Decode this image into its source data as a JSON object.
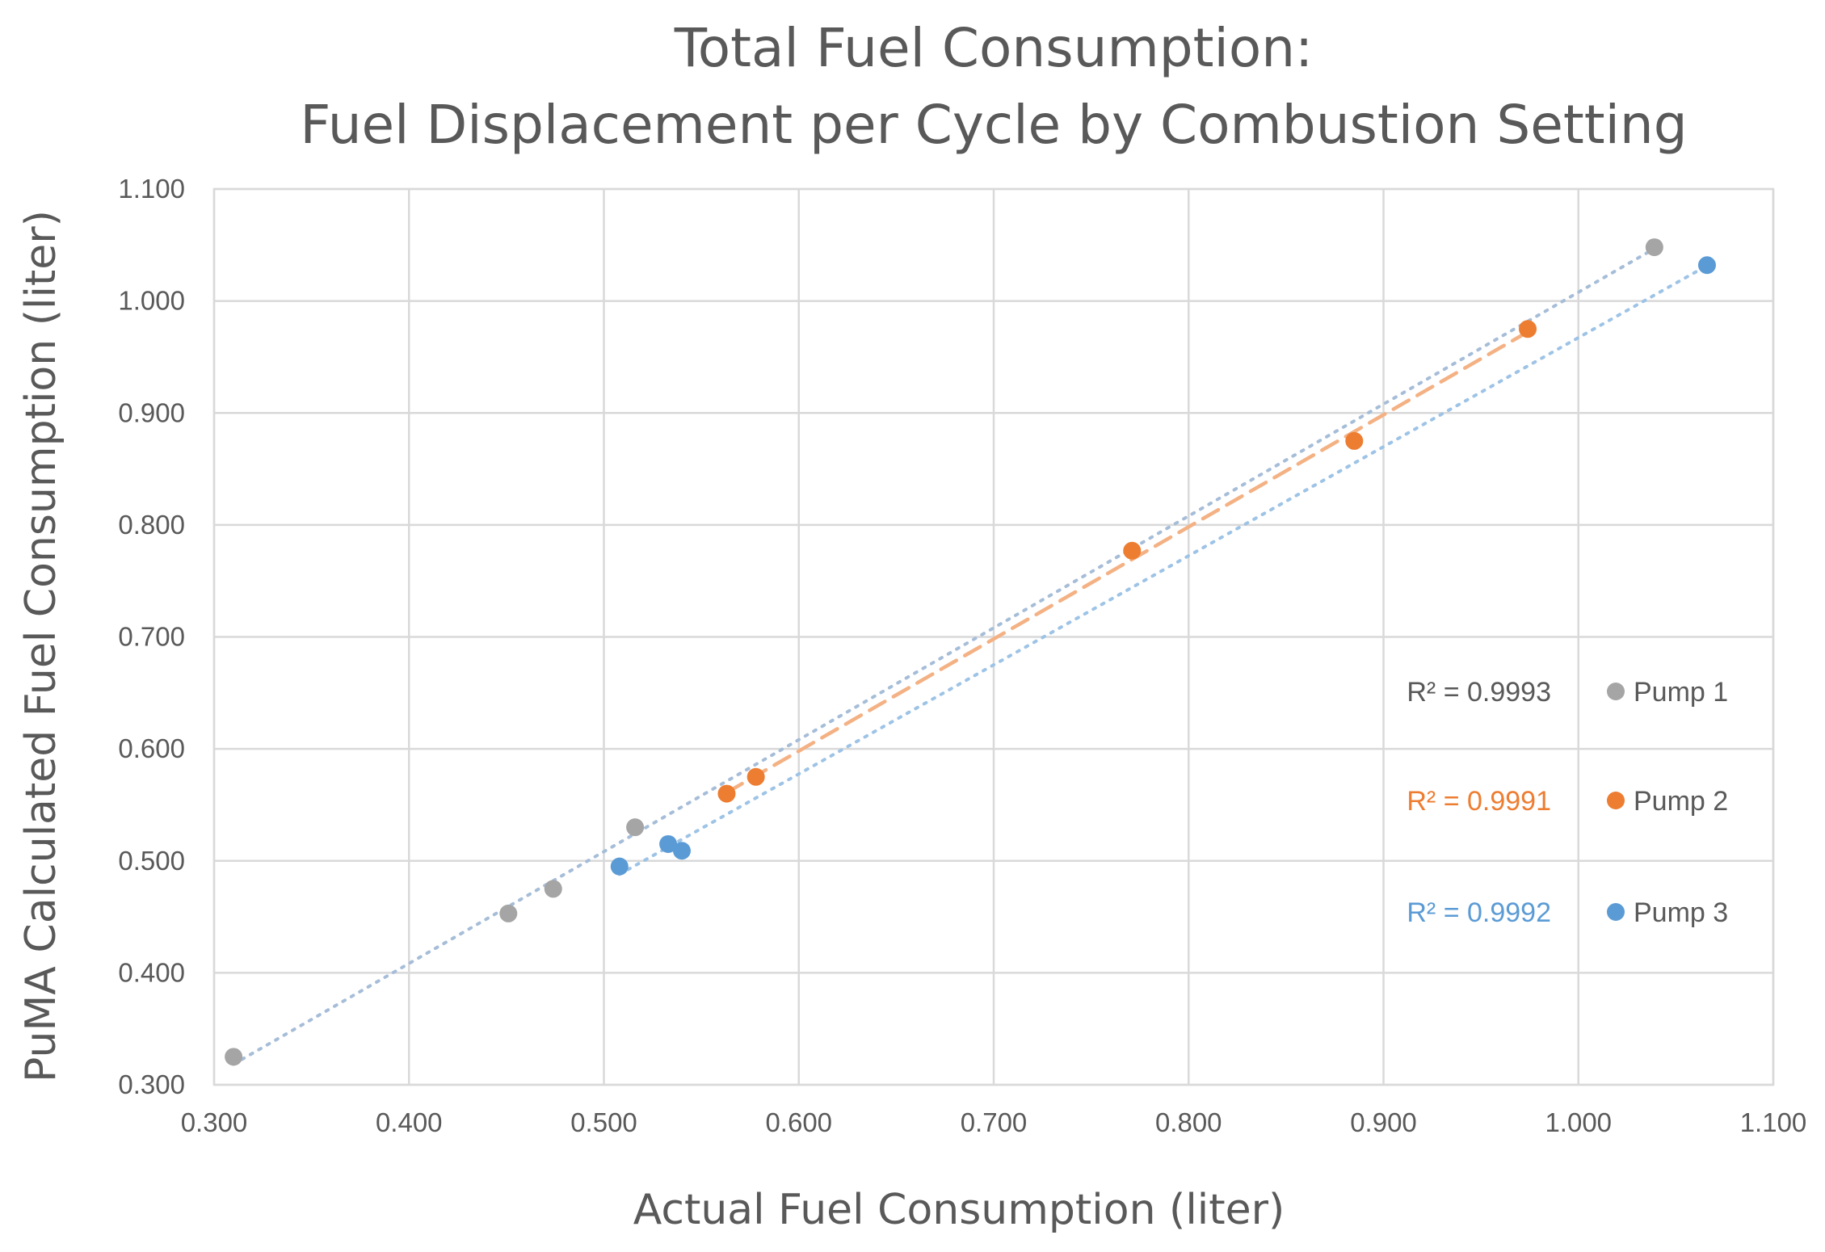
{
  "chart_data": {
    "type": "scatter",
    "title_lines": [
      "Total Fuel Consumption:",
      "Fuel Displacement per Cycle by Combustion Setting"
    ],
    "xlabel": "Actual Fuel Consumption (liter)",
    "ylabel": "PuMA Calculated Fuel Consumption (liter)",
    "xlim": [
      0.3,
      1.1
    ],
    "ylim": [
      0.3,
      1.1
    ],
    "xticks": [
      "0.300",
      "0.400",
      "0.500",
      "0.600",
      "0.700",
      "0.800",
      "0.900",
      "1.000",
      "1.100"
    ],
    "yticks": [
      "0.300",
      "0.400",
      "0.500",
      "0.600",
      "0.700",
      "0.800",
      "0.900",
      "1.000",
      "1.100"
    ],
    "xtick_values": [
      0.3,
      0.4,
      0.5,
      0.6,
      0.7,
      0.8,
      0.9,
      1.0,
      1.1
    ],
    "ytick_values": [
      0.3,
      0.4,
      0.5,
      0.6,
      0.7,
      0.8,
      0.9,
      1.0,
      1.1
    ],
    "grid": true,
    "legend_position": "right",
    "series": [
      {
        "name": "Pump 1",
        "color": "#a5a5a5",
        "r2_label": "R² = 0.9993",
        "r2_color": "#595959",
        "trendline": "dotted",
        "trend_color": "#a6bdd8",
        "points": [
          [
            0.31,
            0.325
          ],
          [
            0.451,
            0.453
          ],
          [
            0.474,
            0.475
          ],
          [
            0.516,
            0.53
          ],
          [
            1.039,
            1.048
          ]
        ]
      },
      {
        "name": "Pump 2",
        "color": "#ed7d31",
        "r2_label": "R² = 0.9991",
        "r2_color": "#ed7d31",
        "trendline": "dashed",
        "trend_color": "#f4b183",
        "points": [
          [
            0.563,
            0.56
          ],
          [
            0.578,
            0.575
          ],
          [
            0.771,
            0.777
          ],
          [
            0.885,
            0.875
          ],
          [
            0.974,
            0.975
          ]
        ]
      },
      {
        "name": "Pump 3",
        "color": "#5b9bd5",
        "r2_label": "R² = 0.9992",
        "r2_color": "#5b9bd5",
        "trendline": "dotted",
        "trend_color": "#9dc3e6",
        "points": [
          [
            0.508,
            0.495
          ],
          [
            0.533,
            0.515
          ],
          [
            0.54,
            0.509
          ],
          [
            1.066,
            1.032
          ]
        ]
      }
    ]
  }
}
